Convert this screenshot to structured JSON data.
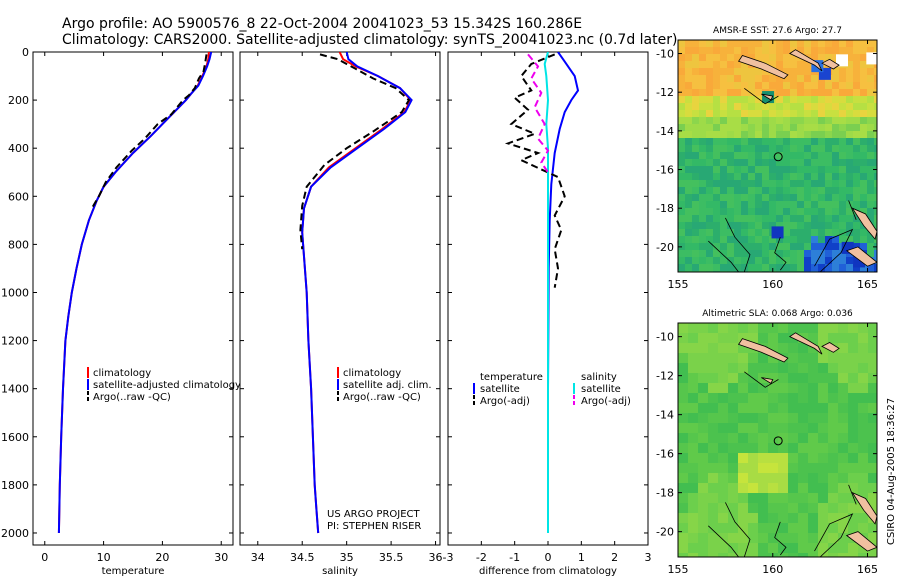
{
  "header": {
    "line1": "Argo profile: AO 5900576_8 22-Oct-2004 20041023_53 15.342S 160.286E",
    "line2": "Climatology: CARS2000. Satellite-adjusted climatology: synTS_20041023.nc (0.7d later)"
  },
  "colors": {
    "climatology": "#ff0000",
    "satellite": "#0000ff",
    "argo": "#000000",
    "sal_satellite": "#00e5e5",
    "sal_argo": "#ee00ee"
  },
  "depth_ticks": [
    0,
    200,
    400,
    600,
    800,
    1000,
    1200,
    1400,
    1600,
    1800,
    2000
  ],
  "chart_data": [
    {
      "type": "line",
      "xlabel": "temperature",
      "xlim": [
        -2,
        32
      ],
      "ylim": [
        2050,
        0
      ],
      "xticks": [
        0,
        10,
        20,
        30
      ],
      "legend": [
        "climatology",
        "satellite-adjusted climatology",
        "Argo(..raw -QC)"
      ],
      "series": [
        {
          "name": "climatology",
          "color": "#ff0000",
          "style": "solid",
          "x": [
            27.9,
            27.8,
            27.5,
            26.8,
            26.0,
            25.0,
            24.0,
            22.0,
            20.0,
            18.0,
            15.0,
            12.0,
            10.0,
            8.8,
            7.5,
            6.3,
            5.4,
            4.6,
            4.0,
            3.5,
            3.1,
            2.8,
            2.55,
            2.4
          ],
          "y": [
            0,
            30,
            60,
            100,
            140,
            170,
            200,
            250,
            300,
            350,
            420,
            500,
            560,
            620,
            700,
            800,
            900,
            1000,
            1100,
            1200,
            1400,
            1600,
            1800,
            2000
          ]
        },
        {
          "name": "satellite-adjusted climatology",
          "color": "#0000ff",
          "style": "solid",
          "x": [
            28.3,
            28.0,
            27.6,
            26.9,
            26.1,
            25.0,
            24.0,
            22.0,
            20.0,
            18.0,
            15.0,
            12.0,
            10.0,
            8.8,
            7.5,
            6.3,
            5.4,
            4.6,
            4.0,
            3.5,
            3.1,
            2.8,
            2.55,
            2.4
          ],
          "y": [
            0,
            30,
            60,
            100,
            140,
            170,
            200,
            250,
            300,
            350,
            420,
            500,
            560,
            620,
            700,
            800,
            900,
            1000,
            1100,
            1200,
            1400,
            1600,
            1800,
            2000
          ]
        },
        {
          "name": "Argo(..raw -QC)",
          "color": "#000000",
          "style": "dash",
          "x": [
            27.5,
            27.3,
            27.0,
            26.2,
            25.5,
            24.5,
            23.5,
            21.5,
            19.2,
            17.0,
            14.8,
            12.2,
            10.4,
            9.2,
            8.0
          ],
          "y": [
            10,
            40,
            80,
            110,
            150,
            180,
            200,
            260,
            300,
            360,
            410,
            480,
            540,
            600,
            650
          ]
        }
      ]
    },
    {
      "type": "line",
      "xlabel": "salinity",
      "xlim": [
        33.8,
        36.05
      ],
      "ylim": [
        2050,
        0
      ],
      "xticks": [
        34,
        34.5,
        35,
        35.5,
        36
      ],
      "legend": [
        "climatology",
        "satellite adj. clim.",
        "Argo(..raw -QC)"
      ],
      "annotation": [
        "US ARGO PROJECT",
        "PI: STEPHEN RISER"
      ],
      "series": [
        {
          "name": "climatology",
          "color": "#ff0000",
          "style": "solid",
          "x": [
            34.92,
            34.96,
            35.1,
            35.35,
            35.6,
            35.72,
            35.65,
            35.4,
            35.1,
            34.8,
            34.6,
            34.52,
            34.5,
            34.52,
            34.55,
            34.57,
            34.6,
            34.62,
            34.64,
            34.66,
            34.68
          ],
          "y": [
            0,
            30,
            60,
            100,
            150,
            200,
            250,
            320,
            400,
            480,
            560,
            650,
            750,
            850,
            1000,
            1200,
            1400,
            1600,
            1800,
            1900,
            2000
          ]
        },
        {
          "name": "satellite adj. clim.",
          "color": "#0000ff",
          "style": "solid",
          "x": [
            35.0,
            35.02,
            35.12,
            35.35,
            35.6,
            35.73,
            35.66,
            35.42,
            35.12,
            34.82,
            34.6,
            34.52,
            34.5,
            34.52,
            34.55,
            34.57,
            34.6,
            34.62,
            34.64,
            34.66,
            34.68
          ],
          "y": [
            0,
            30,
            60,
            100,
            150,
            200,
            250,
            320,
            400,
            480,
            560,
            650,
            750,
            850,
            1000,
            1200,
            1400,
            1600,
            1800,
            1900,
            2000
          ]
        },
        {
          "name": "Argo(..raw -QC)",
          "color": "#000000",
          "style": "dash",
          "x": [
            34.7,
            34.9,
            35.1,
            35.3,
            35.55,
            35.7,
            35.62,
            35.3,
            35.0,
            34.75,
            34.55,
            34.5,
            34.48,
            34.5
          ],
          "y": [
            10,
            30,
            70,
            110,
            150,
            200,
            250,
            330,
            400,
            470,
            560,
            640,
            740,
            820
          ],
          "step_lines": true
        }
      ]
    },
    {
      "type": "line",
      "xlabel": "difference from climatology",
      "xlim": [
        -3,
        3
      ],
      "ylim": [
        2050,
        0
      ],
      "xticks": [
        -3,
        -2,
        -1,
        0,
        1,
        2,
        3
      ],
      "legend_left": [
        "temperature",
        "satellite",
        "Argo(-adj)"
      ],
      "legend_right": [
        "salinity",
        "satellite",
        "Argo(-adj)"
      ],
      "series": [
        {
          "name": "temperature satellite",
          "color": "#0000ff",
          "style": "solid",
          "x": [
            0.3,
            0.5,
            0.8,
            0.9,
            0.7,
            0.5,
            0.35,
            0.2,
            0.1,
            0.05,
            0.02,
            0.0,
            0.0
          ],
          "y": [
            0,
            40,
            100,
            160,
            200,
            250,
            320,
            420,
            550,
            700,
            900,
            1400,
            2000
          ]
        },
        {
          "name": "temperature Argo(-adj)",
          "color": "#000000",
          "style": "dash",
          "x": [
            0.2,
            -0.5,
            -0.8,
            -0.5,
            -1.0,
            -0.6,
            -1.1,
            -0.4,
            -1.2,
            -0.3,
            -0.8,
            0.3,
            0.5,
            0.2,
            0.4,
            0.2,
            0.3,
            0.2
          ],
          "y": [
            10,
            50,
            100,
            160,
            190,
            240,
            300,
            340,
            380,
            420,
            450,
            520,
            600,
            680,
            740,
            820,
            900,
            980
          ]
        },
        {
          "name": "salinity satellite",
          "color": "#00e5e5",
          "style": "solid",
          "x": [
            0.0,
            -0.1,
            -0.05,
            0.0,
            -0.05,
            0.0,
            0.0,
            0.0,
            0.0
          ],
          "y": [
            0,
            50,
            100,
            200,
            300,
            400,
            600,
            1000,
            2000
          ]
        },
        {
          "name": "salinity Argo(-adj)",
          "color": "#ee00ee",
          "style": "dash",
          "x": [
            -0.6,
            -0.3,
            -0.5,
            -0.2,
            -0.4,
            -0.1,
            -0.3,
            0.0,
            -0.2,
            0.0
          ],
          "y": [
            10,
            60,
            110,
            170,
            230,
            300,
            360,
            410,
            460,
            500
          ]
        }
      ]
    },
    {
      "type": "heatmap",
      "title": "AMSR-E SST: 27.6 Argo: 27.7",
      "xlim": [
        155,
        165.5
      ],
      "ylim": [
        -21.3,
        -9.3
      ],
      "xticks": [
        155,
        160,
        165
      ],
      "yticks": [
        -10,
        -12,
        -14,
        -16,
        -18,
        -20
      ],
      "marker": {
        "lon": 160.286,
        "lat": -15.342
      }
    },
    {
      "type": "heatmap",
      "title": "Altimetric SLA: 0.068 Argo: 0.036",
      "xlim": [
        155,
        165.5
      ],
      "ylim": [
        -21.3,
        -9.3
      ],
      "xticks": [
        155,
        160,
        165
      ],
      "yticks": [
        -10,
        -12,
        -14,
        -16,
        -18,
        -20
      ],
      "marker": {
        "lon": 160.286,
        "lat": -15.342
      }
    }
  ],
  "side_stamp": "CSIRO 04-Aug-2005 18:36:27"
}
